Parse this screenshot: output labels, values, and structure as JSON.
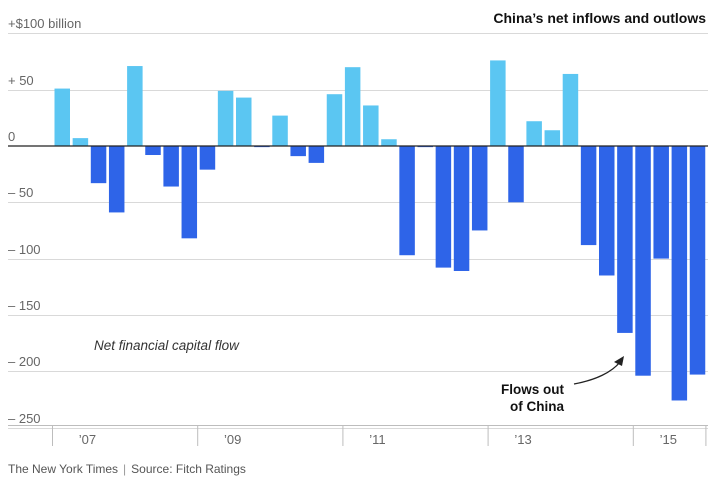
{
  "chart_data": {
    "type": "bar",
    "title": "China’s net inflows and outlows",
    "series_label": "Net financial capital flow",
    "ylabel": "+$100 billion",
    "ylim": [
      -250,
      100
    ],
    "y_ticks": [
      {
        "value": 100,
        "label": "+$100 billion"
      },
      {
        "value": 50,
        "label": "+  50"
      },
      {
        "value": 0,
        "label": "0"
      },
      {
        "value": -50,
        "label": "– 50"
      },
      {
        "value": -100,
        "label": "– 100"
      },
      {
        "value": -150,
        "label": "– 150"
      },
      {
        "value": -200,
        "label": "– 200"
      },
      {
        "value": -250,
        "label": "– 250"
      }
    ],
    "x_ticks": [
      {
        "label": "’07",
        "quarter_index": 1
      },
      {
        "label": "’09",
        "quarter_index": 9
      },
      {
        "label": "’11",
        "quarter_index": 17
      },
      {
        "label": "’13",
        "quarter_index": 25
      },
      {
        "label": "’15",
        "quarter_index": 33
      }
    ],
    "quarters_start": "2007 Q1",
    "values": [
      51,
      7,
      -33,
      -59,
      71,
      -8,
      -36,
      -82,
      -21,
      49,
      43,
      -1,
      27,
      -9,
      -15,
      46,
      70,
      36,
      6,
      -97,
      -1,
      -108,
      -111,
      -75,
      76,
      -50,
      22,
      14,
      64,
      -88,
      -115,
      -166,
      -204,
      -100,
      -226,
      -203
    ],
    "colors": {
      "positive": "#5bc6f2",
      "negative": "#2e64e8",
      "grid": "#d9d9d9",
      "zero": "#222222"
    },
    "annotation": {
      "text_line1": "Flows out",
      "text_line2": "of China",
      "target_quarter_index": 31
    }
  },
  "footer": {
    "publisher": "The New York Times",
    "separator": "|",
    "source": "Source: Fitch Ratings"
  }
}
